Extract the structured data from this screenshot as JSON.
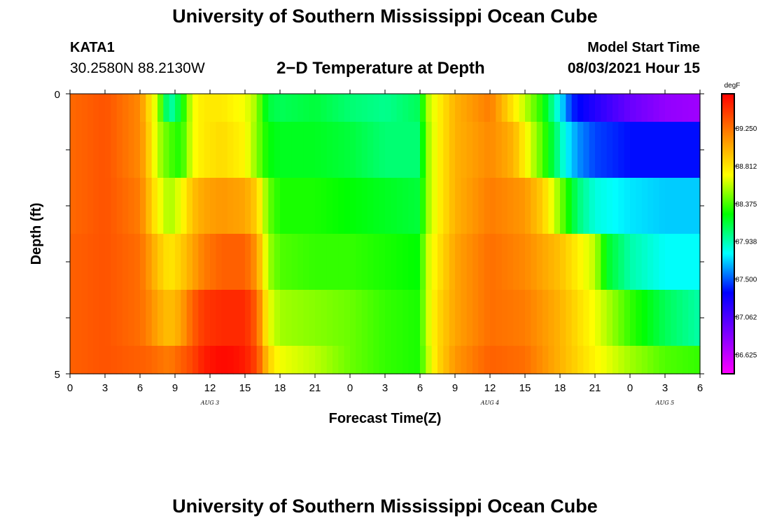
{
  "header": {
    "title": "University of Southern Mississippi Ocean Cube",
    "station_id": "KATA1",
    "station_coords": "30.2580N  88.2130W",
    "plot_title": "2−D Temperature at Depth",
    "model_start_label": "Model Start Time",
    "model_start_time": "08/03/2021 Hour 15"
  },
  "footer": {
    "title": "University of Southern Mississippi Ocean Cube"
  },
  "colors": {
    "scale": [
      "#ff00ff",
      "#8000ff",
      "#0000ff",
      "#00ffff",
      "#00ff00",
      "#ffff00",
      "#ff8000",
      "#ff0000"
    ]
  },
  "chart_data": {
    "type": "heatmap",
    "xlabel": "Forecast Time(Z)",
    "ylabel": "Depth (ft)",
    "x_ticks": [
      "0",
      "3",
      "6",
      "9",
      "12",
      "15",
      "18",
      "21",
      "0",
      "3",
      "6",
      "9",
      "12",
      "15",
      "18",
      "21",
      "0",
      "3",
      "6"
    ],
    "date_labels": [
      {
        "label": "AUG 3",
        "x_hour": 12
      },
      {
        "label": "AUG 4",
        "x_hour": 36
      },
      {
        "label": "AUG 5",
        "x_hour": 51
      }
    ],
    "xlim_hours": [
      0,
      54
    ],
    "y_ticks": [
      "0",
      "5"
    ],
    "ylim_ft": [
      0,
      5
    ],
    "colorbar": {
      "unit": "degF",
      "min": 86.4,
      "max": 89.65,
      "tick_labels": [
        "89.250",
        "88.812",
        "88.375",
        "87.938",
        "87.500",
        "87.062",
        "86.625"
      ]
    },
    "depth_bands_ft": [
      [
        0,
        0.5
      ],
      [
        0.5,
        1.5
      ],
      [
        1.5,
        2.5
      ],
      [
        2.5,
        3.5
      ],
      [
        3.5,
        4.5
      ],
      [
        4.5,
        5
      ]
    ],
    "series": [
      {
        "name": "0 ft",
        "hours": [
          0,
          3,
          6,
          6.5,
          7.5,
          8.5,
          9.5,
          10.5,
          11.5,
          13,
          15,
          16,
          16.5,
          17,
          18,
          21,
          24,
          27,
          30,
          30.5,
          31.5,
          33,
          36,
          37.5,
          39,
          40.5,
          41.5,
          42.5,
          43,
          45,
          48,
          51,
          54
        ],
        "values": [
          89.27,
          89.35,
          89.15,
          88.95,
          88.6,
          87.9,
          88.2,
          88.7,
          88.8,
          88.8,
          88.7,
          88.55,
          88.3,
          88.15,
          88.1,
          88.15,
          88.05,
          88.0,
          88.1,
          88.55,
          88.75,
          89.0,
          89.2,
          88.9,
          88.6,
          88.3,
          87.95,
          87.6,
          87.4,
          87.2,
          86.95,
          86.8,
          86.75
        ]
      },
      {
        "name": "1 ft",
        "hours": [
          0,
          3,
          6,
          6.5,
          7.5,
          8.5,
          9.5,
          10.5,
          11.5,
          13,
          15,
          16,
          17,
          18,
          21,
          24,
          27,
          30,
          30.5,
          31.5,
          33,
          36,
          38,
          40.5,
          41.5,
          42.5,
          43.5,
          45,
          48,
          51,
          54
        ],
        "values": [
          89.27,
          89.35,
          89.15,
          89.0,
          88.6,
          88.4,
          88.3,
          88.7,
          88.8,
          88.85,
          88.75,
          88.5,
          88.25,
          88.2,
          88.2,
          88.15,
          88.05,
          88.05,
          88.5,
          88.75,
          89.0,
          89.15,
          89.0,
          88.4,
          88.1,
          87.8,
          87.6,
          87.45,
          87.35,
          87.35,
          87.35
        ]
      },
      {
        "name": "2 ft",
        "hours": [
          0,
          3,
          6,
          6.5,
          7.5,
          8.5,
          9.5,
          10.5,
          11.5,
          13,
          15,
          16,
          17,
          18,
          21,
          24,
          27,
          30,
          30.5,
          31.5,
          33,
          36,
          39,
          40.5,
          42,
          43.5,
          45,
          48,
          51,
          54
        ],
        "values": [
          89.27,
          89.35,
          89.2,
          89.05,
          88.75,
          88.55,
          88.7,
          88.95,
          89.05,
          89.1,
          89.05,
          88.9,
          88.45,
          88.3,
          88.3,
          88.25,
          88.2,
          88.15,
          88.5,
          88.75,
          89.0,
          89.2,
          89.1,
          88.9,
          88.5,
          88.05,
          87.85,
          87.75,
          87.7,
          87.7
        ]
      },
      {
        "name": "3 ft",
        "hours": [
          0,
          3,
          6,
          6.5,
          7.5,
          8.5,
          9.5,
          10.5,
          11.5,
          13,
          15,
          16,
          17,
          18,
          21,
          24,
          27,
          30,
          30.5,
          31.5,
          33,
          36,
          39,
          42,
          45,
          46,
          48,
          51,
          54
        ],
        "values": [
          89.3,
          89.35,
          89.25,
          89.15,
          88.95,
          88.8,
          88.9,
          89.05,
          89.2,
          89.3,
          89.3,
          89.1,
          88.55,
          88.4,
          88.35,
          88.35,
          88.3,
          88.25,
          88.6,
          88.8,
          89.05,
          89.25,
          89.15,
          88.95,
          88.6,
          88.2,
          87.95,
          87.8,
          87.8
        ]
      },
      {
        "name": "4 ft",
        "hours": [
          0,
          3,
          6,
          6.5,
          7.5,
          8.5,
          9.5,
          10.5,
          11.5,
          13,
          15,
          16,
          17,
          18,
          21,
          24,
          27,
          30,
          30.5,
          31.5,
          33,
          36,
          39,
          42,
          45,
          48,
          51,
          54
        ],
        "values": [
          89.3,
          89.35,
          89.25,
          89.2,
          89.05,
          88.95,
          89.05,
          89.3,
          89.45,
          89.5,
          89.5,
          89.3,
          88.7,
          88.55,
          88.5,
          88.45,
          88.35,
          88.3,
          88.6,
          88.85,
          89.05,
          89.25,
          89.2,
          89.0,
          88.7,
          88.35,
          88.1,
          87.95
        ]
      },
      {
        "name": "5 ft",
        "hours": [
          0,
          3,
          6,
          6.5,
          7.5,
          8.5,
          9.5,
          10.5,
          11.5,
          12.5,
          13,
          14,
          15,
          16,
          17,
          18,
          21,
          24,
          27,
          30,
          30.5,
          31.5,
          33,
          36,
          39,
          42,
          45,
          48,
          51,
          54
        ],
        "values": [
          89.3,
          89.35,
          89.3,
          89.3,
          89.25,
          89.2,
          89.3,
          89.4,
          89.55,
          89.6,
          89.62,
          89.6,
          89.55,
          89.4,
          88.9,
          88.7,
          88.6,
          88.45,
          88.35,
          88.3,
          88.55,
          88.85,
          89.1,
          89.3,
          89.25,
          89.0,
          88.75,
          88.55,
          88.4,
          88.35
        ]
      }
    ]
  }
}
